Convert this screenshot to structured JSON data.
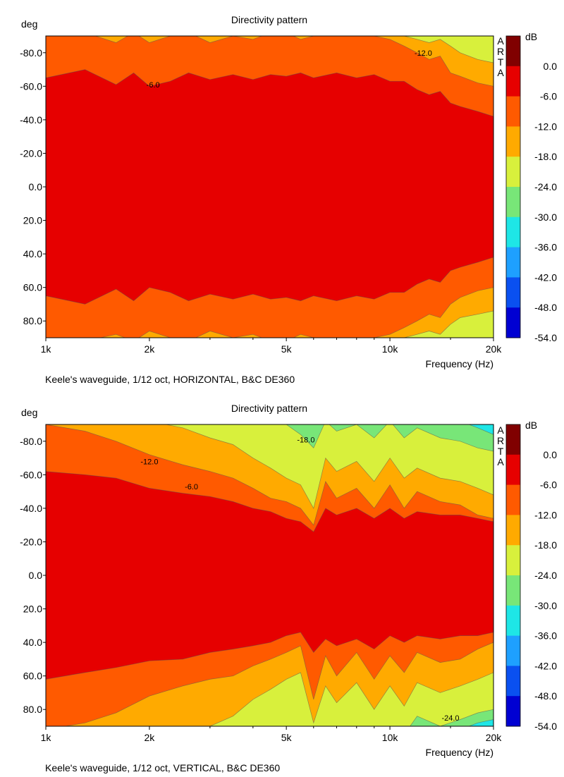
{
  "colors": {
    "levels": [
      "#800000",
      "#e60000",
      "#ff5a00",
      "#ffaa00",
      "#d8f03c",
      "#78e678",
      "#1ee6e6",
      "#1ea0ff",
      "#0a50f0",
      "#0000d2"
    ],
    "contour_line": "#555555"
  },
  "arta_letters": [
    "A",
    "R",
    "T",
    "A"
  ],
  "chart_data": [
    {
      "type": "heatmap",
      "title": "Directivity pattern",
      "ylabel": "deg",
      "xlabel": "Frequency (Hz)",
      "caption": "Keele's waveguide, 1/12 oct, HORIZONTAL, B&C DE360",
      "x_scale": "log",
      "xlim": [
        1000,
        20000
      ],
      "x_ticks": [
        {
          "value": 1000,
          "label": "1k"
        },
        {
          "value": 2000,
          "label": "2k"
        },
        {
          "value": 5000,
          "label": "5k"
        },
        {
          "value": 10000,
          "label": "10k"
        },
        {
          "value": 20000,
          "label": "20k"
        }
      ],
      "ylim": [
        -90,
        90
      ],
      "y_ticks": [
        {
          "value": -80,
          "label": "-80.0"
        },
        {
          "value": -60,
          "label": "-60.0"
        },
        {
          "value": -40,
          "label": "-40.0"
        },
        {
          "value": -20,
          "label": "-20.0"
        },
        {
          "value": 0,
          "label": "0.0"
        },
        {
          "value": 20,
          "label": "20.0"
        },
        {
          "value": 40,
          "label": "40.0"
        },
        {
          "value": 60,
          "label": "60.0"
        },
        {
          "value": 80,
          "label": "80.0"
        }
      ],
      "colorbar": {
        "unit": "dB",
        "ticks": [
          "0.0",
          "-6.0",
          "-12.0",
          "-18.0",
          "-24.0",
          "-30.0",
          "-36.0",
          "-42.0",
          "-48.0",
          "-54.0"
        ]
      },
      "freq_hz": [
        1000,
        1300,
        1600,
        1800,
        2000,
        2300,
        2600,
        3000,
        3500,
        4000,
        4500,
        5000,
        5500,
        6000,
        7000,
        8000,
        9000,
        10000,
        11000,
        12000,
        13000,
        14000,
        15000,
        16000,
        18000,
        20000
      ],
      "contours_deg": {
        "minus6_neg": [
          -65,
          -70,
          -61,
          -68,
          -60,
          -63,
          -68,
          -64,
          -67,
          -64,
          -67,
          -66,
          -68,
          -65,
          -68,
          -65,
          -67,
          -63,
          -63,
          -58,
          -55,
          -57,
          -50,
          -48,
          -45,
          -42
        ],
        "minus6_pos": [
          65,
          70,
          61,
          68,
          60,
          63,
          68,
          64,
          67,
          64,
          67,
          66,
          68,
          65,
          68,
          65,
          67,
          63,
          63,
          58,
          55,
          57,
          50,
          48,
          45,
          42
        ],
        "minus12_neg": [
          -92,
          -92,
          -86,
          -92,
          -86,
          -90,
          -92,
          -86,
          -90,
          -88,
          -92,
          -92,
          -88,
          -90,
          -92,
          -92,
          -90,
          -88,
          -84,
          -80,
          -76,
          -78,
          -68,
          -66,
          -62,
          -60
        ],
        "minus12_pos": [
          92,
          92,
          88,
          92,
          86,
          90,
          92,
          86,
          90,
          88,
          92,
          92,
          88,
          90,
          92,
          92,
          90,
          88,
          84,
          80,
          76,
          78,
          70,
          66,
          62,
          60
        ],
        "minus18_neg": [
          -92,
          -92,
          -92,
          -92,
          -92,
          -92,
          -92,
          -92,
          -92,
          -92,
          -92,
          -92,
          -92,
          -92,
          -92,
          -92,
          -92,
          -92,
          -90,
          -88,
          -86,
          -88,
          -84,
          -80,
          -76,
          -74
        ],
        "minus18_pos": [
          92,
          92,
          92,
          92,
          92,
          92,
          92,
          92,
          92,
          92,
          92,
          92,
          92,
          92,
          92,
          92,
          92,
          92,
          90,
          88,
          86,
          88,
          82,
          78,
          76,
          74
        ]
      },
      "labels": [
        {
          "text": "-6.0",
          "freq_hz": 2050,
          "deg": -61
        },
        {
          "text": "-12.0",
          "freq_hz": 12500,
          "deg": -80
        }
      ]
    },
    {
      "type": "heatmap",
      "title": "Directivity pattern",
      "ylabel": "deg",
      "xlabel": "Frequency (Hz)",
      "caption": "Keele's waveguide, 1/12 oct, VERTICAL, B&C DE360",
      "x_scale": "log",
      "xlim": [
        1000,
        20000
      ],
      "x_ticks": [
        {
          "value": 1000,
          "label": "1k"
        },
        {
          "value": 2000,
          "label": "2k"
        },
        {
          "value": 5000,
          "label": "5k"
        },
        {
          "value": 10000,
          "label": "10k"
        },
        {
          "value": 20000,
          "label": "20k"
        }
      ],
      "ylim": [
        -90,
        90
      ],
      "y_ticks": [
        {
          "value": -80,
          "label": "-80.0"
        },
        {
          "value": -60,
          "label": "-60.0"
        },
        {
          "value": -40,
          "label": "-40.0"
        },
        {
          "value": -20,
          "label": "-20.0"
        },
        {
          "value": 0,
          "label": "0.0"
        },
        {
          "value": 20,
          "label": "20.0"
        },
        {
          "value": 40,
          "label": "40.0"
        },
        {
          "value": 60,
          "label": "60.0"
        },
        {
          "value": 80,
          "label": "80.0"
        }
      ],
      "colorbar": {
        "unit": "dB",
        "ticks": [
          "0.0",
          "-6.0",
          "-12.0",
          "-18.0",
          "-24.0",
          "-30.0",
          "-36.0",
          "-42.0",
          "-48.0",
          "-54.0"
        ]
      },
      "freq_hz": [
        1000,
        1300,
        1600,
        2000,
        2500,
        3000,
        3500,
        4000,
        4500,
        5000,
        5500,
        6000,
        6500,
        7000,
        8000,
        9000,
        10000,
        11000,
        12000,
        14000,
        16000,
        18000,
        20000
      ],
      "contours_deg": {
        "minus6_neg": [
          -62,
          -60,
          -58,
          -52,
          -49,
          -47,
          -44,
          -40,
          -38,
          -34,
          -32,
          -26,
          -40,
          -36,
          -40,
          -34,
          -40,
          -34,
          -38,
          -36,
          -36,
          -34,
          -32
        ],
        "minus6_pos": [
          62,
          58,
          55,
          51,
          50,
          46,
          44,
          42,
          40,
          36,
          34,
          46,
          38,
          42,
          38,
          44,
          36,
          40,
          36,
          38,
          36,
          36,
          34
        ],
        "minus12_neg": [
          -90,
          -86,
          -80,
          -72,
          -66,
          -62,
          -58,
          -52,
          -46,
          -44,
          -40,
          -30,
          -56,
          -46,
          -52,
          -40,
          -54,
          -40,
          -50,
          -44,
          -42,
          -36,
          -34
        ],
        "minus12_pos": [
          92,
          88,
          82,
          72,
          66,
          62,
          60,
          54,
          50,
          46,
          42,
          74,
          48,
          60,
          46,
          62,
          48,
          58,
          46,
          52,
          50,
          44,
          40
        ],
        "minus18_neg": [
          -92,
          -92,
          -92,
          -92,
          -88,
          -82,
          -78,
          -70,
          -64,
          -58,
          -54,
          -40,
          -70,
          -62,
          -68,
          -56,
          -70,
          -58,
          -64,
          -58,
          -56,
          -52,
          -48
        ],
        "minus18_pos": [
          92,
          92,
          92,
          92,
          92,
          90,
          84,
          74,
          68,
          62,
          58,
          88,
          66,
          76,
          64,
          80,
          66,
          78,
          64,
          70,
          66,
          62,
          58
        ],
        "minus24_neg": [
          -95,
          -95,
          -95,
          -95,
          -95,
          -95,
          -95,
          -95,
          -95,
          -90,
          -84,
          -76,
          -92,
          -86,
          -90,
          -82,
          -92,
          -82,
          -88,
          -82,
          -80,
          -76,
          -74
        ],
        "minus24_pos": [
          95,
          95,
          95,
          95,
          95,
          95,
          95,
          95,
          95,
          95,
          95,
          95,
          95,
          95,
          95,
          95,
          95,
          95,
          84,
          90,
          86,
          82,
          80
        ],
        "minus30_neg": [
          -95,
          -95,
          -95,
          -95,
          -95,
          -95,
          -95,
          -95,
          -95,
          -95,
          -95,
          -95,
          -95,
          -95,
          -95,
          -95,
          -95,
          -95,
          -95,
          -95,
          -92,
          -88,
          -84
        ],
        "minus30_pos": [
          95,
          95,
          95,
          95,
          95,
          95,
          95,
          95,
          95,
          95,
          95,
          95,
          95,
          95,
          95,
          95,
          95,
          95,
          95,
          95,
          92,
          88,
          86
        ]
      },
      "labels": [
        {
          "text": "-18.0",
          "freq_hz": 5700,
          "deg": -81
        },
        {
          "text": "-12.0",
          "freq_hz": 2000,
          "deg": -68
        },
        {
          "text": "-6.0",
          "freq_hz": 2650,
          "deg": -53
        },
        {
          "text": "-24.0",
          "freq_hz": 15000,
          "deg": 85
        }
      ]
    }
  ]
}
